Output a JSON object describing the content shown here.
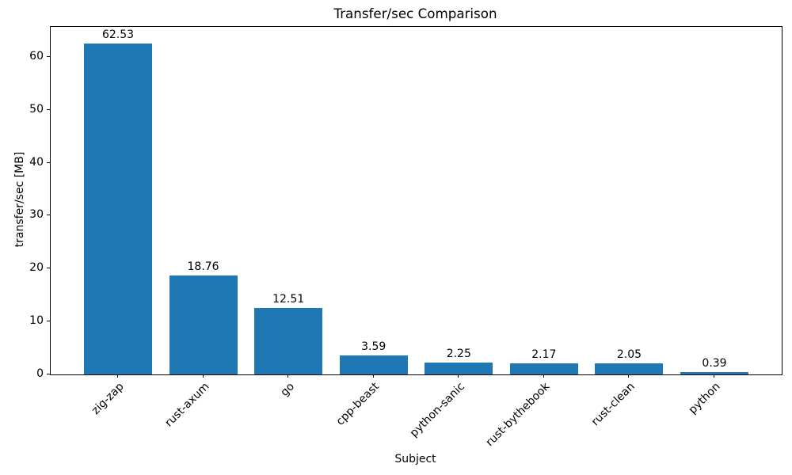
{
  "chart_data": {
    "type": "bar",
    "title": "Transfer/sec Comparison",
    "xlabel": "Subject",
    "ylabel": "transfer/sec [MB]",
    "categories": [
      "zig-zap",
      "rust-axum",
      "go",
      "cpp-beast",
      "python-sanic",
      "rust-bythebook",
      "rust-clean",
      "python"
    ],
    "values": [
      62.53,
      18.76,
      12.51,
      3.59,
      2.25,
      2.17,
      2.05,
      0.39
    ],
    "bar_labels": [
      "62.53",
      "18.76",
      "12.51",
      "3.59",
      "2.25",
      "2.17",
      "2.05",
      "0.39"
    ],
    "yticks": [
      0,
      10,
      20,
      30,
      40,
      50,
      60
    ],
    "ylim": [
      0,
      65.66
    ],
    "bar_color": "#1f77b4",
    "axis_color": "#000000",
    "grid": false,
    "legend_position": "none",
    "x_tick_label_rotation_deg": 45
  }
}
